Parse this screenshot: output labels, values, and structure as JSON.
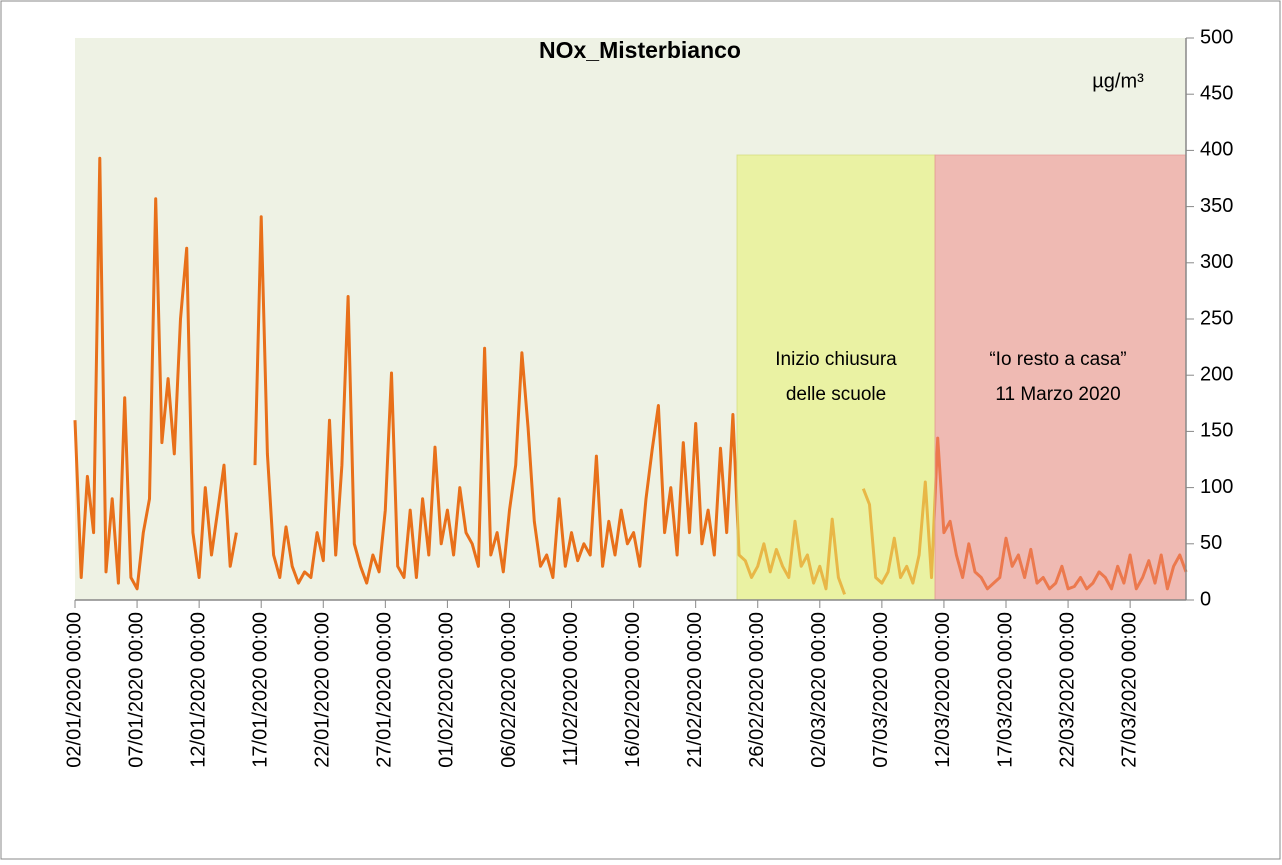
{
  "chart_data": {
    "type": "line",
    "title": "NOx_Misterbianco",
    "unit_label": "µg/m³",
    "annotations": [
      {
        "lines": [
          "Inizio chiusura",
          "delle scuole"
        ]
      },
      {
        "lines": [
          "“Io resto a casa”",
          "11 Marzo 2020"
        ]
      }
    ],
    "ylim": [
      0,
      500
    ],
    "yticks": [
      0,
      50,
      100,
      150,
      200,
      250,
      300,
      350,
      400,
      450,
      500
    ],
    "xticks": [
      "02/01/2020 00:00",
      "07/01/2020 00:00",
      "12/01/2020 00:00",
      "17/01/2020 00:00",
      "22/01/2020 00:00",
      "27/01/2020 00:00",
      "01/02/2020 00:00",
      "06/02/2020 00:00",
      "11/02/2020 00:00",
      "16/02/2020 00:00",
      "21/02/2020 00:00",
      "26/02/2020 00:00",
      "02/03/2020 00:00",
      "07/03/2020 00:00",
      "12/03/2020 00:00",
      "17/03/2020 00:00",
      "22/03/2020 00:00",
      "27/03/2020 00:00"
    ],
    "x": [
      "02/01/2020 00:00",
      "02/01/2020 12:00",
      "03/01/2020 00:00",
      "03/01/2020 12:00",
      "04/01/2020 00:00",
      "04/01/2020 12:00",
      "05/01/2020 00:00",
      "05/01/2020 12:00",
      "06/01/2020 00:00",
      "06/01/2020 12:00",
      "07/01/2020 00:00",
      "07/01/2020 12:00",
      "08/01/2020 00:00",
      "08/01/2020 12:00",
      "09/01/2020 00:00",
      "09/01/2020 12:00",
      "10/01/2020 00:00",
      "10/01/2020 12:00",
      "11/01/2020 00:00",
      "11/01/2020 12:00",
      "12/01/2020 00:00",
      "12/01/2020 12:00",
      "13/01/2020 00:00",
      "13/01/2020 12:00",
      "14/01/2020 00:00",
      "14/01/2020 12:00",
      "15/01/2020 00:00",
      "15/01/2020 12:00",
      "16/01/2020 00:00",
      "16/01/2020 12:00",
      "17/01/2020 00:00",
      "17/01/2020 12:00",
      "18/01/2020 00:00",
      "18/01/2020 12:00",
      "19/01/2020 00:00",
      "19/01/2020 12:00",
      "20/01/2020 00:00",
      "20/01/2020 12:00",
      "21/01/2020 00:00",
      "21/01/2020 12:00",
      "22/01/2020 00:00",
      "22/01/2020 12:00",
      "23/01/2020 00:00",
      "23/01/2020 12:00",
      "24/01/2020 00:00",
      "24/01/2020 12:00",
      "25/01/2020 00:00",
      "25/01/2020 12:00",
      "26/01/2020 00:00",
      "26/01/2020 12:00",
      "27/01/2020 00:00",
      "27/01/2020 12:00",
      "28/01/2020 00:00",
      "28/01/2020 12:00",
      "29/01/2020 00:00",
      "29/01/2020 12:00",
      "30/01/2020 00:00",
      "30/01/2020 12:00",
      "31/01/2020 00:00",
      "31/01/2020 12:00",
      "01/02/2020 00:00",
      "01/02/2020 12:00",
      "02/02/2020 00:00",
      "02/02/2020 12:00",
      "03/02/2020 00:00",
      "03/02/2020 12:00",
      "04/02/2020 00:00",
      "04/02/2020 12:00",
      "05/02/2020 00:00",
      "05/02/2020 12:00",
      "06/02/2020 00:00",
      "06/02/2020 12:00",
      "07/02/2020 00:00",
      "07/02/2020 12:00",
      "08/02/2020 00:00",
      "08/02/2020 12:00",
      "09/02/2020 00:00",
      "09/02/2020 12:00",
      "10/02/2020 00:00",
      "10/02/2020 12:00",
      "11/02/2020 00:00",
      "11/02/2020 12:00",
      "12/02/2020 00:00",
      "12/02/2020 12:00",
      "13/02/2020 00:00",
      "13/02/2020 12:00",
      "14/02/2020 00:00",
      "14/02/2020 12:00",
      "15/02/2020 00:00",
      "15/02/2020 12:00",
      "16/02/2020 00:00",
      "16/02/2020 12:00",
      "17/02/2020 00:00",
      "17/02/2020 12:00",
      "18/02/2020 00:00",
      "18/02/2020 12:00",
      "19/02/2020 00:00",
      "19/02/2020 12:00",
      "20/02/2020 00:00",
      "20/02/2020 12:00",
      "21/02/2020 00:00",
      "21/02/2020 12:00",
      "22/02/2020 00:00",
      "22/02/2020 12:00",
      "23/02/2020 00:00",
      "23/02/2020 12:00",
      "24/02/2020 00:00",
      "24/02/2020 12:00",
      "25/02/2020 00:00",
      "25/02/2020 12:00",
      "26/02/2020 00:00",
      "26/02/2020 12:00",
      "27/02/2020 00:00",
      "27/02/2020 12:00",
      "28/02/2020 00:00",
      "28/02/2020 12:00",
      "29/02/2020 00:00",
      "29/02/2020 12:00",
      "01/03/2020 00:00",
      "01/03/2020 12:00",
      "02/03/2020 00:00",
      "02/03/2020 12:00",
      "03/03/2020 00:00",
      "03/03/2020 12:00",
      "04/03/2020 00:00",
      "04/03/2020 12:00",
      "05/03/2020 00:00",
      "05/03/2020 12:00",
      "06/03/2020 00:00",
      "06/03/2020 12:00",
      "07/03/2020 00:00",
      "07/03/2020 12:00",
      "08/03/2020 00:00",
      "08/03/2020 12:00",
      "09/03/2020 00:00",
      "09/03/2020 12:00",
      "10/03/2020 00:00",
      "10/03/2020 12:00",
      "11/03/2020 00:00",
      "11/03/2020 12:00",
      "12/03/2020 00:00",
      "12/03/2020 12:00",
      "13/03/2020 00:00",
      "13/03/2020 12:00",
      "14/03/2020 00:00",
      "14/03/2020 12:00",
      "15/03/2020 00:00",
      "15/03/2020 12:00",
      "16/03/2020 00:00",
      "16/03/2020 12:00",
      "17/03/2020 00:00",
      "17/03/2020 12:00",
      "18/03/2020 00:00",
      "18/03/2020 12:00",
      "19/03/2020 00:00",
      "19/03/2020 12:00",
      "20/03/2020 00:00",
      "20/03/2020 12:00",
      "21/03/2020 00:00",
      "21/03/2020 12:00",
      "22/03/2020 00:00",
      "22/03/2020 12:00",
      "23/03/2020 00:00",
      "23/03/2020 12:00",
      "24/03/2020 00:00",
      "24/03/2020 12:00",
      "25/03/2020 00:00",
      "25/03/2020 12:00",
      "26/03/2020 00:00",
      "26/03/2020 12:00",
      "27/03/2020 00:00",
      "27/03/2020 12:00",
      "28/03/2020 00:00",
      "28/03/2020 12:00",
      "29/03/2020 00:00",
      "29/03/2020 12:00",
      "30/03/2020 00:00",
      "30/03/2020 12:00",
      "31/03/2020 00:00",
      "31/03/2020 12:00"
    ],
    "series": [
      {
        "name": "NOx_Misterbianco",
        "color": "#e8701a",
        "values": [
          160,
          20,
          110,
          60,
          393,
          25,
          90,
          15,
          180,
          20,
          10,
          60,
          90,
          357,
          140,
          197,
          130,
          250,
          313,
          60,
          20,
          100,
          40,
          80,
          120,
          30,
          60,
          null,
          null,
          120,
          341,
          130,
          40,
          20,
          65,
          30,
          15,
          25,
          20,
          60,
          35,
          160,
          40,
          120,
          270,
          50,
          30,
          15,
          40,
          25,
          80,
          202,
          30,
          20,
          80,
          20,
          90,
          40,
          136,
          50,
          80,
          40,
          100,
          60,
          50,
          30,
          224,
          40,
          60,
          25,
          80,
          120,
          220,
          153,
          70,
          30,
          40,
          20,
          90,
          30,
          60,
          35,
          50,
          40,
          128,
          30,
          70,
          40,
          80,
          50,
          60,
          30,
          90,
          134,
          173,
          60,
          100,
          40,
          140,
          60,
          157,
          50,
          80,
          40,
          135,
          60,
          165,
          40,
          35,
          20,
          30,
          50,
          25,
          45,
          30,
          20,
          70,
          30,
          40,
          15,
          30,
          10,
          72,
          20,
          5,
          null,
          null,
          99,
          85,
          20,
          15,
          25,
          55,
          20,
          30,
          15,
          40,
          105,
          20,
          144,
          60,
          70,
          40,
          20,
          50,
          25,
          20,
          10,
          15,
          20,
          55,
          30,
          40,
          20,
          45,
          15,
          20,
          10,
          15,
          30,
          10,
          12,
          20,
          10,
          15,
          25,
          20,
          10,
          30,
          15,
          40,
          10,
          20,
          35,
          15,
          40,
          10,
          30,
          40,
          25
        ]
      }
    ]
  }
}
